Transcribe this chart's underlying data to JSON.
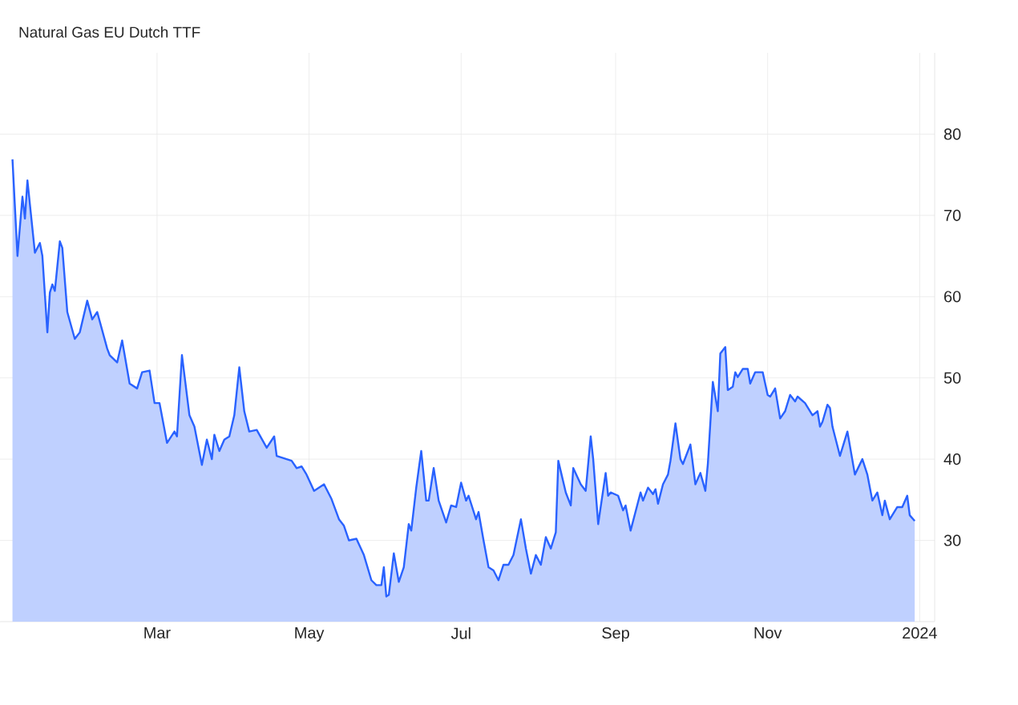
{
  "chart_data": {
    "type": "area",
    "title": "Natural Gas EU Dutch TTF",
    "x": [
      "2023-01-02",
      "2023-01-04",
      "2023-01-06",
      "2023-01-07",
      "2023-01-08",
      "2023-01-11",
      "2023-01-13",
      "2023-01-14",
      "2023-01-16",
      "2023-01-17",
      "2023-01-18",
      "2023-01-19",
      "2023-01-21",
      "2023-01-22",
      "2023-01-24",
      "2023-01-27",
      "2023-01-29",
      "2023-02-01",
      "2023-02-03",
      "2023-02-05",
      "2023-02-09",
      "2023-02-10",
      "2023-02-13",
      "2023-02-15",
      "2023-02-18",
      "2023-02-21",
      "2023-02-23",
      "2023-02-26",
      "2023-02-28",
      "2023-03-02",
      "2023-03-05",
      "2023-03-08",
      "2023-03-09",
      "2023-03-11",
      "2023-03-14",
      "2023-03-16",
      "2023-03-19",
      "2023-03-21",
      "2023-03-23",
      "2023-03-24",
      "2023-03-26",
      "2023-03-28",
      "2023-03-30",
      "2023-04-01",
      "2023-04-03",
      "2023-04-05",
      "2023-04-07",
      "2023-04-10",
      "2023-04-14",
      "2023-04-17",
      "2023-04-18",
      "2023-04-22",
      "2023-04-24",
      "2023-04-26",
      "2023-04-28",
      "2023-04-30",
      "2023-05-03",
      "2023-05-07",
      "2023-05-10",
      "2023-05-13",
      "2023-05-15",
      "2023-05-17",
      "2023-05-20",
      "2023-05-23",
      "2023-05-26",
      "2023-05-28",
      "2023-05-30",
      "2023-05-31",
      "2023-06-01",
      "2023-06-02",
      "2023-06-04",
      "2023-06-06",
      "2023-06-08",
      "2023-06-10",
      "2023-06-11",
      "2023-06-13",
      "2023-06-15",
      "2023-06-17",
      "2023-06-18",
      "2023-06-20",
      "2023-06-22",
      "2023-06-25",
      "2023-06-27",
      "2023-06-29",
      "2023-07-01",
      "2023-07-03",
      "2023-07-04",
      "2023-07-07",
      "2023-07-08",
      "2023-07-10",
      "2023-07-12",
      "2023-07-14",
      "2023-07-16",
      "2023-07-18",
      "2023-07-20",
      "2023-07-22",
      "2023-07-25",
      "2023-07-27",
      "2023-07-29",
      "2023-07-31",
      "2023-08-02",
      "2023-08-04",
      "2023-08-06",
      "2023-08-08",
      "2023-08-09",
      "2023-08-12",
      "2023-08-14",
      "2023-08-15",
      "2023-08-18",
      "2023-08-20",
      "2023-08-22",
      "2023-08-23",
      "2023-08-25",
      "2023-08-28",
      "2023-08-29",
      "2023-08-30",
      "2023-09-02",
      "2023-09-04",
      "2023-09-05",
      "2023-09-07",
      "2023-09-11",
      "2023-09-12",
      "2023-09-14",
      "2023-09-16",
      "2023-09-17",
      "2023-09-18",
      "2023-09-20",
      "2023-09-22",
      "2023-09-23",
      "2023-09-25",
      "2023-09-27",
      "2023-09-28",
      "2023-10-01",
      "2023-10-03",
      "2023-10-05",
      "2023-10-07",
      "2023-10-08",
      "2023-10-10",
      "2023-10-12",
      "2023-10-13",
      "2023-10-15",
      "2023-10-16",
      "2023-10-18",
      "2023-10-19",
      "2023-10-20",
      "2023-10-22",
      "2023-10-24",
      "2023-10-25",
      "2023-10-27",
      "2023-10-30",
      "2023-11-01",
      "2023-11-02",
      "2023-11-04",
      "2023-11-06",
      "2023-11-08",
      "2023-11-10",
      "2023-11-12",
      "2023-11-13",
      "2023-11-16",
      "2023-11-19",
      "2023-11-21",
      "2023-11-22",
      "2023-11-23",
      "2023-11-25",
      "2023-11-26",
      "2023-11-27",
      "2023-11-30",
      "2023-12-03",
      "2023-12-06",
      "2023-12-09",
      "2023-12-11",
      "2023-12-13",
      "2023-12-15",
      "2023-12-17",
      "2023-12-18",
      "2023-12-20",
      "2023-12-23",
      "2023-12-25",
      "2023-12-27",
      "2023-12-28",
      "2023-12-30"
    ],
    "values": [
      76.9,
      65.0,
      72.3,
      69.6,
      74.3,
      65.4,
      66.6,
      65.0,
      55.6,
      60.5,
      61.5,
      60.7,
      66.8,
      66.0,
      58.1,
      54.8,
      55.6,
      59.5,
      57.2,
      58.1,
      53.6,
      52.8,
      51.9,
      54.6,
      49.3,
      48.7,
      50.7,
      50.9,
      46.9,
      46.9,
      42.0,
      43.4,
      42.8,
      52.8,
      45.4,
      44.0,
      39.3,
      42.4,
      40.0,
      43.0,
      41.0,
      42.4,
      42.8,
      45.4,
      51.3,
      45.9,
      43.4,
      43.6,
      41.4,
      42.8,
      40.4,
      40.0,
      39.8,
      38.9,
      39.1,
      38.1,
      36.1,
      36.9,
      35.1,
      32.6,
      31.8,
      30.0,
      30.2,
      28.2,
      25.1,
      24.5,
      24.5,
      26.7,
      23.1,
      23.3,
      28.4,
      24.9,
      26.7,
      32.0,
      31.2,
      36.5,
      41.0,
      34.9,
      34.9,
      38.9,
      34.9,
      32.2,
      34.3,
      34.1,
      37.1,
      34.9,
      35.5,
      32.6,
      33.5,
      30.0,
      26.7,
      26.3,
      25.1,
      27.0,
      27.0,
      28.2,
      32.6,
      29.0,
      25.9,
      28.2,
      27.0,
      30.4,
      29.0,
      31.0,
      39.8,
      35.9,
      34.3,
      38.9,
      36.9,
      36.1,
      42.8,
      40.0,
      32.0,
      38.3,
      35.5,
      35.9,
      35.5,
      33.7,
      34.3,
      31.2,
      35.9,
      34.9,
      36.5,
      35.7,
      36.3,
      34.5,
      36.9,
      38.1,
      39.8,
      44.4,
      40.0,
      39.4,
      41.8,
      36.9,
      38.3,
      36.1,
      39.4,
      49.5,
      45.9,
      53.0,
      53.8,
      48.5,
      48.9,
      50.7,
      50.1,
      51.1,
      51.1,
      49.3,
      50.7,
      50.7,
      47.9,
      47.7,
      48.7,
      45.0,
      45.9,
      47.9,
      47.1,
      47.7,
      46.9,
      45.4,
      45.9,
      44.0,
      44.6,
      46.7,
      46.3,
      44.0,
      40.4,
      43.4,
      38.1,
      40.0,
      38.1,
      34.9,
      35.9,
      33.1,
      34.9,
      32.6,
      34.1,
      34.1,
      35.5,
      33.1,
      32.4
    ],
    "color": "#2962ff",
    "xlim": [
      "2022-12-28",
      "2024-01-07"
    ],
    "xticks": [
      {
        "value": "2023-03-01",
        "label": "Mar"
      },
      {
        "value": "2023-05-01",
        "label": "May"
      },
      {
        "value": "2023-07-01",
        "label": "Jul"
      },
      {
        "value": "2023-09-01",
        "label": "Sep"
      },
      {
        "value": "2023-11-01",
        "label": "Nov"
      },
      {
        "value": "2024-01-01",
        "label": "2024"
      }
    ],
    "ylim": [
      20,
      90
    ],
    "yticks": [
      30,
      40,
      50,
      60,
      70,
      80
    ],
    "grid": true
  }
}
